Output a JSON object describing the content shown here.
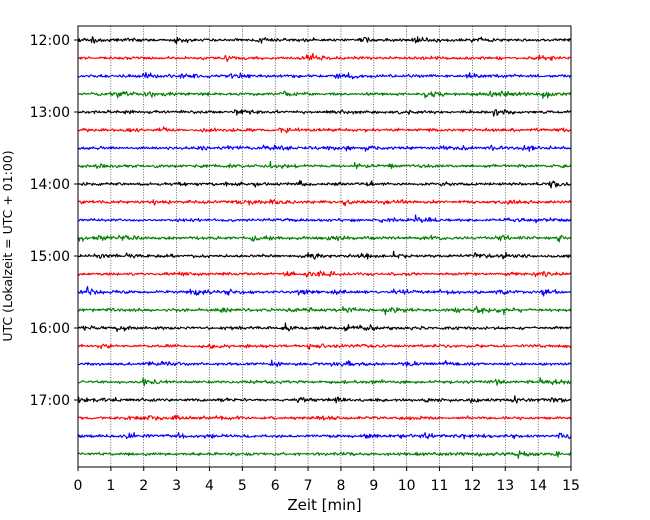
{
  "chart_data": {
    "type": "line",
    "title": "",
    "xlabel": "Zeit  [min]",
    "ylabel": "UTC (Lokalzeit = UTC + 01:00)",
    "xlim": [
      0,
      15
    ],
    "x_ticks": [
      "0",
      "1",
      "2",
      "3",
      "4",
      "5",
      "6",
      "7",
      "8",
      "9",
      "10",
      "11",
      "12",
      "13",
      "14",
      "15"
    ],
    "y_tick_labels": [
      "12:00",
      "13:00",
      "14:00",
      "15:00",
      "16:00",
      "17:00"
    ],
    "x_grid": true,
    "y_grid": false,
    "trace_interval_min": 15,
    "start_time": "12:00",
    "end_time": "17:45",
    "trace_color_cycle": [
      "#000000",
      "#ff0000",
      "#0000ff",
      "#008000"
    ],
    "series": [
      {
        "start": "12:00",
        "color": "#000000"
      },
      {
        "start": "12:15",
        "color": "#ff0000"
      },
      {
        "start": "12:30",
        "color": "#0000ff"
      },
      {
        "start": "12:45",
        "color": "#008000"
      },
      {
        "start": "13:00",
        "color": "#000000"
      },
      {
        "start": "13:15",
        "color": "#ff0000"
      },
      {
        "start": "13:30",
        "color": "#0000ff"
      },
      {
        "start": "13:45",
        "color": "#008000"
      },
      {
        "start": "14:00",
        "color": "#000000"
      },
      {
        "start": "14:15",
        "color": "#ff0000"
      },
      {
        "start": "14:30",
        "color": "#0000ff"
      },
      {
        "start": "14:45",
        "color": "#008000"
      },
      {
        "start": "15:00",
        "color": "#000000"
      },
      {
        "start": "15:15",
        "color": "#ff0000"
      },
      {
        "start": "15:30",
        "color": "#0000ff"
      },
      {
        "start": "15:45",
        "color": "#008000"
      },
      {
        "start": "16:00",
        "color": "#000000"
      },
      {
        "start": "16:15",
        "color": "#ff0000"
      },
      {
        "start": "16:30",
        "color": "#0000ff"
      },
      {
        "start": "16:45",
        "color": "#008000"
      },
      {
        "start": "17:00",
        "color": "#000000"
      },
      {
        "start": "17:15",
        "color": "#ff0000"
      },
      {
        "start": "17:30",
        "color": "#0000ff"
      },
      {
        "start": "17:45",
        "color": "#008000"
      }
    ]
  }
}
